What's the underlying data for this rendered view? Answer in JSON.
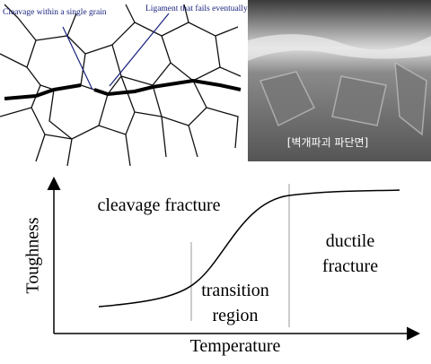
{
  "microstructure": {
    "cleavage_label": "Cleavage within a single grain",
    "ligament_label": "Ligament that fails eventually"
  },
  "photo": {
    "caption": "[벽개파괴 파단면]"
  },
  "graph": {
    "y_axis_label": "Toughness",
    "x_axis_label": "Temperature",
    "cleavage_region": "cleavage fracture",
    "ductile_region": [
      "ductile",
      "fracture"
    ],
    "transition_region": [
      "transition",
      "region"
    ]
  }
}
